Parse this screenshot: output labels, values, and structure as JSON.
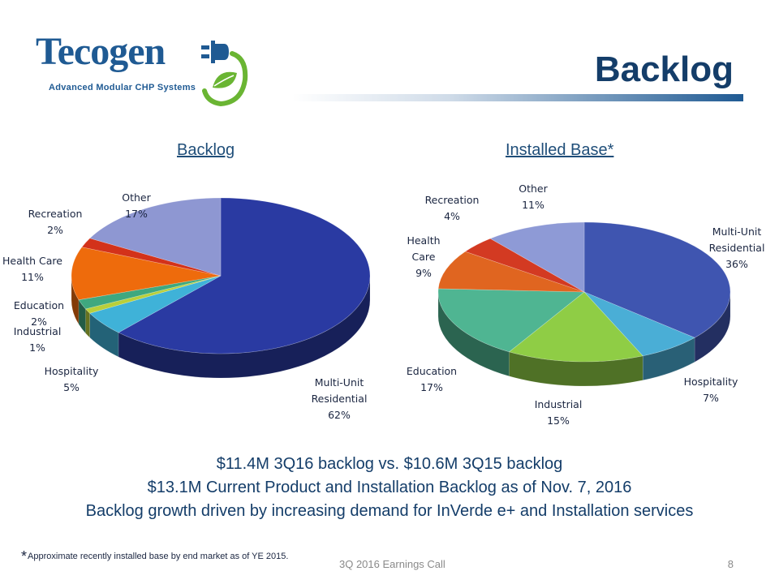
{
  "header": {
    "logo_name": "Tecogen",
    "logo_tagline": "Advanced Modular CHP Systems",
    "title": "Backlog"
  },
  "chart_data": [
    {
      "type": "pie",
      "title": "Backlog",
      "categories": [
        "Multi-Unit Residential",
        "Hospitality",
        "Industrial",
        "Education",
        "Health Care",
        "Recreation",
        "Other"
      ],
      "values": [
        62,
        5,
        1,
        2,
        11,
        2,
        17
      ],
      "value_labels": [
        "62%",
        "5%",
        "1%",
        "2%",
        "11%",
        "2%",
        "17%"
      ],
      "colors": [
        "#2a3aa2",
        "#3fb2d8",
        "#b9cf3a",
        "#3fa87f",
        "#ee6b0c",
        "#d3321a",
        "#8e97d2"
      ]
    },
    {
      "type": "pie",
      "title": "Installed Base*",
      "categories": [
        "Multi-Unit Residential",
        "Hospitality",
        "Industrial",
        "Education",
        "Health Care",
        "Recreation",
        "Other"
      ],
      "values": [
        36,
        7,
        15,
        17,
        9,
        4,
        11
      ],
      "value_labels": [
        "36%",
        "7%",
        "15%",
        "17%",
        "9%",
        "4%",
        "11%"
      ],
      "colors": [
        "#3f55b0",
        "#4aaed6",
        "#8fcd45",
        "#4fb592",
        "#e06520",
        "#d33a22",
        "#8e9ad6"
      ]
    }
  ],
  "summary": [
    "$11.4M 3Q16 backlog vs. $10.6M 3Q15 backlog",
    "$13.1M Current Product and Installation Backlog as of Nov. 7, 2016",
    "Backlog growth driven by increasing demand for InVerde e+ and Installation services"
  ],
  "footer": {
    "footnote_star": "*",
    "footnote_text": "Approximate recently installed base by end market as of YE 2015.",
    "center": "3Q 2016  Earnings Call",
    "page_number": "8"
  }
}
